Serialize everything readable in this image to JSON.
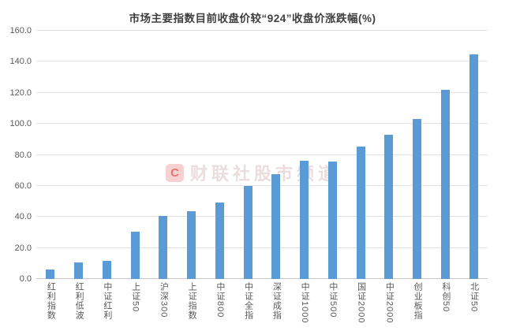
{
  "title": "市场主要指数目前收盘价较“924”收盘价涨跌幅(%)",
  "watermark": {
    "logo_letter": "C",
    "text": "财联社股市频道"
  },
  "colors": {
    "bar": "#5B9BD5",
    "gridline": "#e2e2e2",
    "axis_text": "#595959",
    "title_text": "#3f3f3f",
    "watermark_red": "#e45a5a"
  },
  "chart_data": {
    "type": "bar",
    "title": "市场主要指数目前收盘价较“924”收盘价涨跌幅(%)",
    "categories": [
      "红利指数",
      "红利低波",
      "中证红利",
      "上证50",
      "沪深300",
      "上证指数",
      "中证800",
      "中证全指",
      "深证成指",
      "中证1000",
      "中证500",
      "国证2000",
      "中证2000",
      "创业板指",
      "科创50",
      "北证50"
    ],
    "values": [
      6.0,
      10.5,
      11.5,
      30.5,
      40.5,
      43.5,
      49.5,
      60.0,
      67.5,
      76.0,
      75.5,
      85.5,
      93.0,
      103.0,
      122.0,
      145.0
    ],
    "xlabel": "",
    "ylabel": "",
    "ylim": [
      0,
      160
    ],
    "ytick_step": 20,
    "ytick_labels": [
      "0.0",
      "20.0",
      "40.0",
      "60.0",
      "80.0",
      "100.0",
      "120.0",
      "140.0",
      "160.0"
    ],
    "grid": true,
    "legend": "none"
  }
}
